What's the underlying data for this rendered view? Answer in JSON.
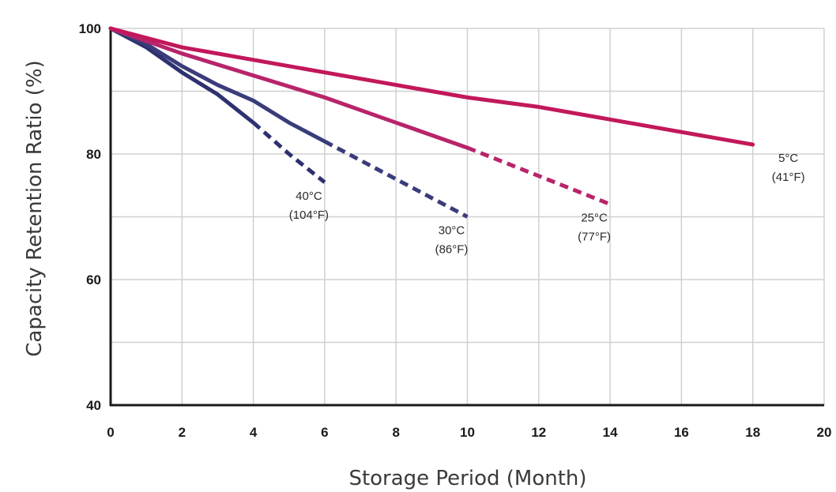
{
  "chart_data": {
    "type": "line",
    "title": "",
    "xlabel": "Storage Period (Month)",
    "ylabel": "Capacity Retention Ratio (%)",
    "xlim": [
      0,
      20
    ],
    "ylim": [
      40,
      100
    ],
    "x_ticks": [
      "0",
      "2",
      "4",
      "6",
      "8",
      "10",
      "12",
      "14",
      "16",
      "18",
      "20"
    ],
    "y_ticks": [
      "40",
      "60",
      "80",
      "100"
    ],
    "grid": true,
    "series": [
      {
        "label_line1": "40°C",
        "label_line2": "(104°F)",
        "color": "#2e3070",
        "solid": [
          [
            0,
            100
          ],
          [
            1,
            97
          ],
          [
            2,
            93
          ],
          [
            3,
            89.5
          ],
          [
            4,
            85
          ]
        ],
        "dashed": [
          [
            4,
            85
          ],
          [
            5,
            80
          ],
          [
            6,
            75.5
          ]
        ]
      },
      {
        "label_line1": "30°C",
        "label_line2": "(86°F)",
        "color": "#3a3c7a",
        "solid": [
          [
            0,
            100
          ],
          [
            1,
            97.5
          ],
          [
            2,
            94
          ],
          [
            3,
            91
          ],
          [
            4,
            88.5
          ],
          [
            5,
            85
          ],
          [
            6,
            82
          ]
        ],
        "dashed": [
          [
            6,
            82
          ],
          [
            8,
            76
          ],
          [
            10,
            70
          ]
        ]
      },
      {
        "label_line1": "25°C",
        "label_line2": "(77°F)",
        "color": "#b8246a",
        "solid": [
          [
            0,
            100
          ],
          [
            2,
            96
          ],
          [
            4,
            92.5
          ],
          [
            6,
            89
          ],
          [
            8,
            85
          ],
          [
            10,
            81
          ]
        ],
        "dashed": [
          [
            10,
            81
          ],
          [
            12,
            76.5
          ],
          [
            14,
            72
          ]
        ]
      },
      {
        "label_line1": "5°C",
        "label_line2": "(41°F)",
        "color": "#c2185b",
        "solid": [
          [
            0,
            100
          ],
          [
            2,
            97
          ],
          [
            4,
            95
          ],
          [
            6,
            93
          ],
          [
            8,
            91
          ],
          [
            10,
            89
          ],
          [
            12,
            87.5
          ],
          [
            14,
            85.5
          ],
          [
            16,
            83.5
          ],
          [
            18,
            81.5
          ]
        ],
        "dashed": []
      }
    ]
  }
}
